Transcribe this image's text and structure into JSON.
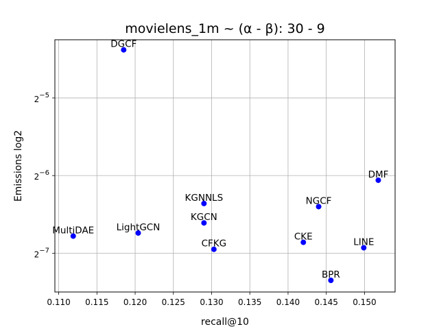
{
  "chart_data": {
    "type": "scatter",
    "title": "movielens_1m ~ (α - β): 30 - 9",
    "xlabel": "recall@10",
    "ylabel": "Emissions log2",
    "xlim": [
      0.1095,
      0.154
    ],
    "ylim": [
      -7.5,
      -4.25
    ],
    "y_scale": "log2",
    "grid": true,
    "marker_color": "#0000ff",
    "x_ticks": [
      {
        "value": 0.11,
        "label": "0.110"
      },
      {
        "value": 0.115,
        "label": "0.115"
      },
      {
        "value": 0.12,
        "label": "0.120"
      },
      {
        "value": 0.125,
        "label": "0.125"
      },
      {
        "value": 0.13,
        "label": "0.130"
      },
      {
        "value": 0.135,
        "label": "0.135"
      },
      {
        "value": 0.14,
        "label": "0.140"
      },
      {
        "value": 0.145,
        "label": "0.145"
      },
      {
        "value": 0.15,
        "label": "0.150"
      }
    ],
    "y_ticks": [
      {
        "value": -5,
        "base": "2",
        "exp": "−5"
      },
      {
        "value": -6,
        "base": "2",
        "exp": "−6"
      },
      {
        "value": -7,
        "base": "2",
        "exp": "−7"
      }
    ],
    "points": [
      {
        "label": "DGCF",
        "x": 0.1185,
        "y": -4.38
      },
      {
        "label": "DMF",
        "x": 0.1518,
        "y": -6.06
      },
      {
        "label": "KGNNLS",
        "x": 0.129,
        "y": -6.36
      },
      {
        "label": "NGCF",
        "x": 0.144,
        "y": -6.4
      },
      {
        "label": "KGCN",
        "x": 0.129,
        "y": -6.61
      },
      {
        "label": "LightGCN",
        "x": 0.1204,
        "y": -6.74
      },
      {
        "label": "MultiDAE",
        "x": 0.1119,
        "y": -6.78
      },
      {
        "label": "CKE",
        "x": 0.142,
        "y": -6.86
      },
      {
        "label": "CFKG",
        "x": 0.1303,
        "y": -6.95
      },
      {
        "label": "LINE",
        "x": 0.1499,
        "y": -6.93
      },
      {
        "label": "BPR",
        "x": 0.1456,
        "y": -7.35
      }
    ]
  }
}
